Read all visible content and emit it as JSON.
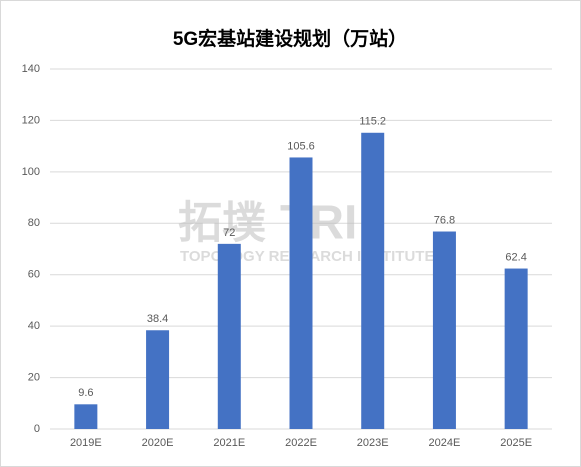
{
  "chart_data": {
    "type": "bar",
    "title": "5G宏基站建设规划（万站）",
    "categories": [
      "2019E",
      "2020E",
      "2021E",
      "2022E",
      "2023E",
      "2024E",
      "2025E"
    ],
    "values": [
      9.6,
      38.4,
      72,
      105.6,
      115.2,
      76.8,
      62.4
    ],
    "color": "#4472c4",
    "ylim": [
      0,
      140
    ],
    "yticks": [
      0,
      20,
      40,
      60,
      80,
      100,
      120,
      140
    ],
    "grid": true,
    "watermark": [
      "拓墣",
      "TRI",
      "TOPOLOGY RESEARCH INSTITUTE"
    ]
  }
}
